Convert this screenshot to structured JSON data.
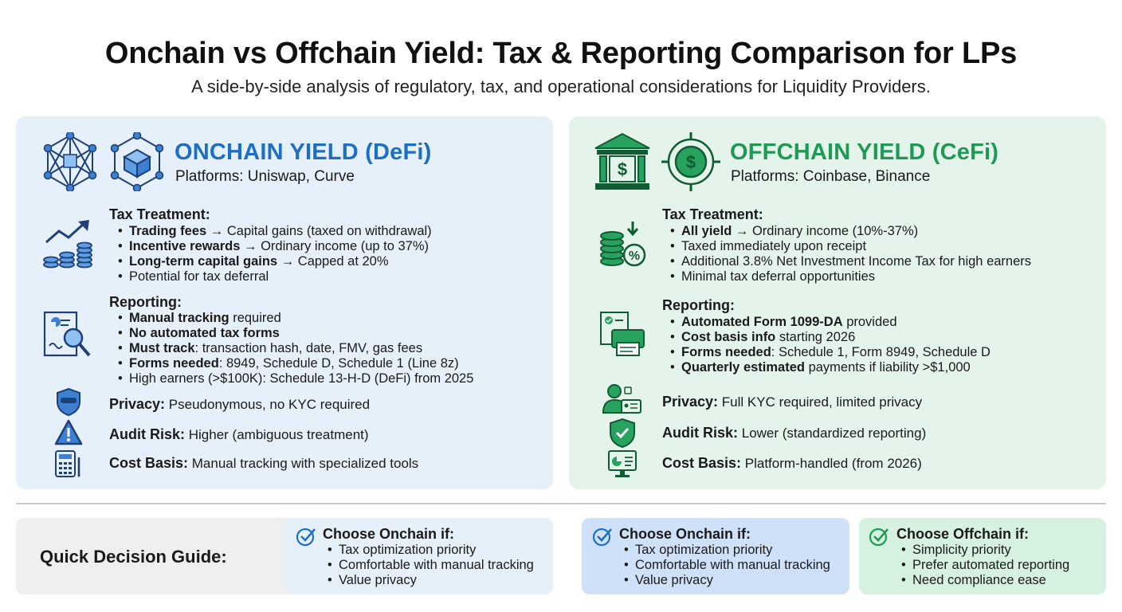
{
  "header": {
    "title": "Onchain vs Offchain Yield: Tax & Reporting Comparison for LPs",
    "subtitle": "A side-by-side analysis of regulatory, tax, and operational considerations for Liquidity Providers."
  },
  "colors": {
    "onchain_blue": "#1d6fc4",
    "offchain_green": "#1e9a55",
    "left_panel_bg": "#e6f0fb",
    "right_panel_bg": "#e5f4ea"
  },
  "left": {
    "title": "ONCHAIN YIELD (DeFi)",
    "platforms": "Platforms: Uniswap, Curve",
    "icons": [
      "network-icon",
      "blockchain-cube-icon",
      "growth-chart-coins-icon",
      "document-search-icon",
      "masked-shield-icon",
      "warning-triangle-icon",
      "calculator-icon"
    ],
    "tax": {
      "heading": "Tax Treatment:",
      "items": [
        {
          "bold": "Trading fees",
          "rest": " → Capital gains (taxed on withdrawal)"
        },
        {
          "bold": "Incentive rewards",
          "rest": " → Ordinary income (up to 37%)"
        },
        {
          "bold": "Long-term capital gains",
          "rest": " → Capped at 20%"
        },
        {
          "bold": "",
          "rest": "Potential for tax deferral"
        }
      ]
    },
    "reporting": {
      "heading": "Reporting:",
      "items": [
        {
          "bold": "Manual tracking",
          "rest": " required"
        },
        {
          "bold": "No automated tax forms",
          "rest": ""
        },
        {
          "bold": "Must track",
          "rest": ": transaction hash, date, FMV, gas fees"
        },
        {
          "bold": "Forms needed",
          "rest": ": 8949, Schedule D, Schedule 1 (Line 8z)"
        },
        {
          "bold": "",
          "rest": "High earners (>$100K): Schedule 13-H-D (DeFi) from 2025"
        }
      ]
    },
    "privacy": {
      "label": "Privacy:",
      "value": " Pseudonymous, no KYC required"
    },
    "audit": {
      "label": "Audit Risk:",
      "value": " Higher (ambiguous treatment)"
    },
    "cost": {
      "label": "Cost Basis:",
      "value": " Manual tracking with specialized tools"
    }
  },
  "right": {
    "title": "OFFCHAIN YIELD (CeFi)",
    "platforms": "Platforms: Coinbase, Binance",
    "icons": [
      "bank-building-icon",
      "dollar-target-icon",
      "coins-percent-icon",
      "document-printer-icon",
      "kyc-id-icon",
      "check-shield-icon",
      "monitor-report-icon"
    ],
    "tax": {
      "heading": "Tax Treatment:",
      "items": [
        {
          "bold": "All yield",
          "rest": " → Ordinary income (10%-37%)"
        },
        {
          "bold": "",
          "rest": "Taxed immediately upon receipt"
        },
        {
          "bold": "",
          "rest": "Additional 3.8% Net Investment Income Tax for high earners"
        },
        {
          "bold": "",
          "rest": "Minimal tax deferral opportunities"
        }
      ]
    },
    "reporting": {
      "heading": "Reporting:",
      "items": [
        {
          "bold": "Automated Form 1099-DA",
          "rest": " provided"
        },
        {
          "bold": "Cost basis info",
          "rest": " starting 2026"
        },
        {
          "bold": "Forms needed",
          "rest": ": Schedule 1, Form 8949, Schedule D"
        },
        {
          "bold": "Quarterly estimated",
          "rest": " payments if liability >$1,000"
        }
      ]
    },
    "privacy": {
      "label": "Privacy:",
      "value": " Full KYC required, limited privacy"
    },
    "audit": {
      "label": "Audit Risk:",
      "value": " Lower (standardized reporting)"
    },
    "cost": {
      "label": "Cost Basis:",
      "value": " Platform-handled (from 2026)"
    }
  },
  "guide": {
    "label": "Quick Decision Guide:",
    "cards": [
      {
        "heading": "Choose Onchain if:",
        "items": [
          "Tax optimization priority",
          "Comfortable with manual tracking",
          "Value privacy"
        ]
      },
      {
        "heading": "Choose Onchain if:",
        "items": [
          "Tax optimization priority",
          "Comfortable with manual tracking",
          "Value privacy"
        ]
      },
      {
        "heading": "Choose Offchain if:",
        "items": [
          "Simplicity priority",
          "Prefer automated reporting",
          "Need compliance ease"
        ]
      }
    ]
  }
}
